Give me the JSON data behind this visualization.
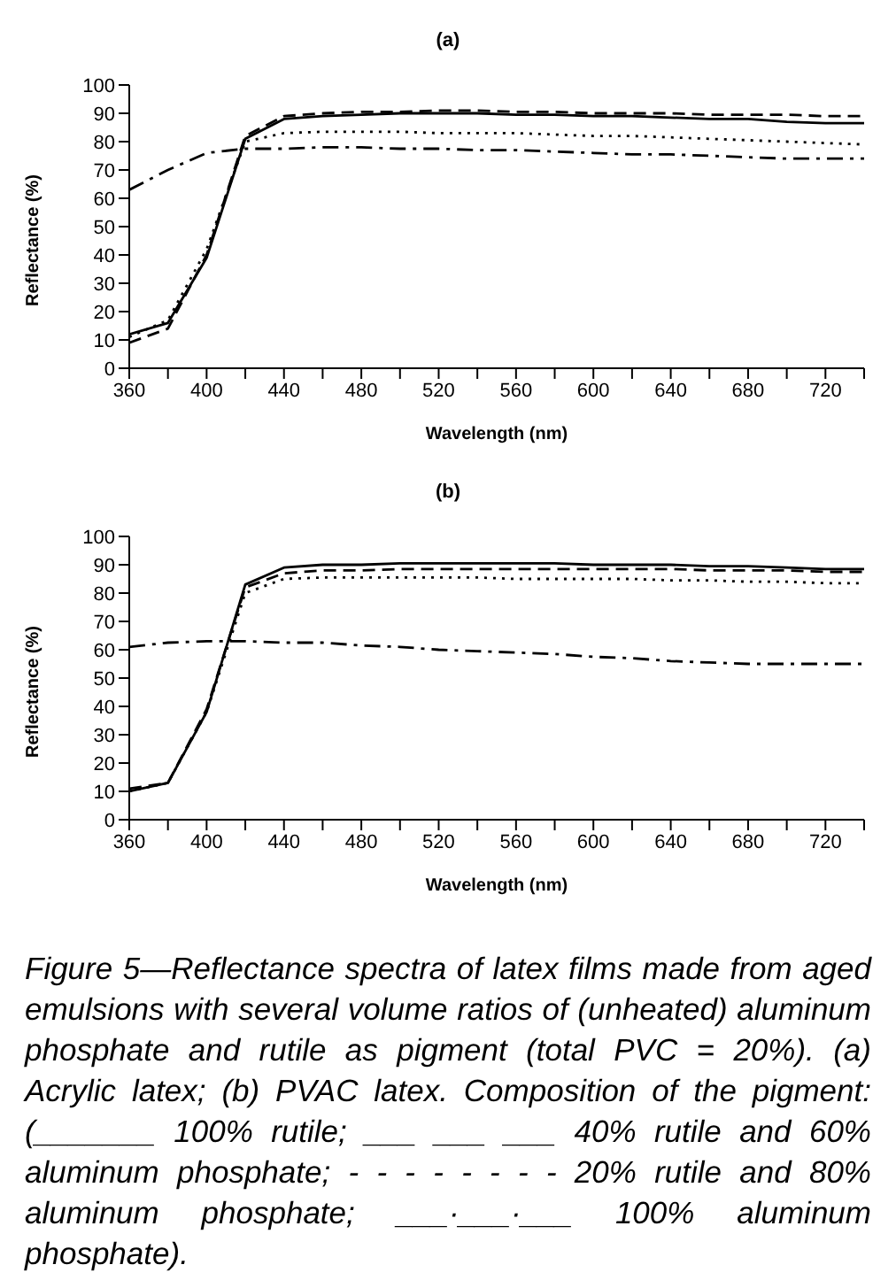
{
  "chart_data": [
    {
      "type": "line",
      "title": "(a)",
      "xlabel": "Wavelength (nm)",
      "ylabel": "Reflectance (%)",
      "x": [
        360,
        380,
        400,
        420,
        440,
        460,
        480,
        500,
        520,
        540,
        560,
        580,
        600,
        620,
        640,
        660,
        680,
        700,
        720,
        740
      ],
      "xlim": [
        360,
        740
      ],
      "xticks": [
        360,
        {
          "value": 380,
          "label": null
        },
        400,
        {
          "value": 420,
          "label": null
        },
        440,
        {
          "value": 460,
          "label": null
        },
        480,
        {
          "value": 500,
          "label": null
        },
        520,
        {
          "value": 540,
          "label": null
        },
        560,
        {
          "value": 580,
          "label": null
        },
        600,
        {
          "value": 620,
          "label": null
        },
        640,
        {
          "value": 660,
          "label": null
        },
        680,
        {
          "value": 700,
          "label": null
        },
        720,
        {
          "value": 740,
          "label": null
        }
      ],
      "ylim": [
        0,
        100
      ],
      "yticks": [
        0,
        10,
        20,
        30,
        40,
        50,
        60,
        70,
        80,
        90,
        100
      ],
      "grid": false,
      "marker": "none",
      "series": [
        {
          "color": "#000000",
          "line_style": "solid",
          "values": [
            12,
            16,
            39,
            81,
            88,
            89,
            89.5,
            90,
            90,
            90,
            89.5,
            89.5,
            89,
            89,
            88.5,
            88,
            88,
            87,
            86.5,
            86.5
          ]
        },
        {
          "color": "#000000",
          "line_style": "dashed",
          "values": [
            9,
            14,
            40,
            82,
            89,
            90,
            90.5,
            90.5,
            91,
            91,
            90.5,
            90.5,
            90,
            90,
            90,
            89.5,
            89.5,
            89.5,
            89,
            89
          ]
        },
        {
          "color": "#000000",
          "line_style": "dotted",
          "values": [
            11,
            17,
            42,
            80,
            83,
            83.5,
            83.5,
            83.5,
            83,
            83,
            83,
            82.5,
            82,
            82,
            81.5,
            81,
            80.5,
            80,
            79.5,
            79
          ]
        },
        {
          "color": "#000000",
          "line_style": "dashdot",
          "values": [
            63,
            70,
            76,
            77.5,
            77.5,
            78,
            78,
            77.5,
            77.5,
            77,
            77,
            76.5,
            76,
            75.5,
            75.5,
            75,
            74.5,
            74,
            74,
            74
          ]
        }
      ]
    },
    {
      "type": "line",
      "title": "(b)",
      "xlabel": "Wavelength (nm)",
      "ylabel": "Reflectance (%)",
      "x": [
        360,
        380,
        400,
        420,
        440,
        460,
        480,
        500,
        520,
        540,
        560,
        580,
        600,
        620,
        640,
        660,
        680,
        700,
        720,
        740
      ],
      "xlim": [
        360,
        740
      ],
      "xticks": [
        360,
        {
          "value": 380,
          "label": null
        },
        400,
        {
          "value": 420,
          "label": null
        },
        440,
        {
          "value": 460,
          "label": null
        },
        480,
        {
          "value": 500,
          "label": null
        },
        520,
        {
          "value": 540,
          "label": null
        },
        560,
        {
          "value": 580,
          "label": null
        },
        600,
        {
          "value": 620,
          "label": null
        },
        640,
        {
          "value": 660,
          "label": null
        },
        680,
        {
          "value": 700,
          "label": null
        },
        720,
        {
          "value": 740,
          "label": null
        }
      ],
      "ylim": [
        0,
        100
      ],
      "yticks": [
        0,
        10,
        20,
        30,
        40,
        50,
        60,
        70,
        80,
        90,
        100
      ],
      "grid": false,
      "marker": "none",
      "series": [
        {
          "color": "#000000",
          "line_style": "solid",
          "values": [
            10,
            13,
            38,
            83,
            89,
            90,
            90,
            90.5,
            90.5,
            90.5,
            90.5,
            90.5,
            90,
            90,
            90,
            89.5,
            89.5,
            89,
            88.5,
            88.5
          ]
        },
        {
          "color": "#000000",
          "line_style": "dashed",
          "values": [
            11,
            13,
            39,
            82,
            87,
            88,
            88,
            88.5,
            88.5,
            88.5,
            88.5,
            88.5,
            88.5,
            88.5,
            88.5,
            88,
            88,
            88,
            87.5,
            87.5
          ]
        },
        {
          "color": "#000000",
          "line_style": "dotted",
          "values": [
            10,
            13,
            38,
            80,
            85,
            85.5,
            85.5,
            85.5,
            85.5,
            85.5,
            85,
            85,
            85,
            85,
            84.5,
            84.5,
            84,
            84,
            83.5,
            83.5
          ]
        },
        {
          "color": "#000000",
          "line_style": "dashdot",
          "values": [
            61,
            62.5,
            63,
            63,
            62.5,
            62.5,
            61.5,
            61,
            60,
            59.5,
            59,
            58.5,
            57.5,
            57,
            56,
            55.5,
            55,
            55,
            55,
            55
          ]
        }
      ],
      "annotations": [
        "Figure 5—Reflectance spectra of latex films made from aged emulsions with several volume ratios of (unheated) aluminum phosphate and rutile as pigment (total PVC = 20%). (a) Acrylic latex; (b) PVAC latex. Composition of the pigment: (_______ 100% rutile; ___ ___ ___ 40% rutile and 60% aluminum phosphate; - - - - - - - - 20% rutile and 80% aluminum phosphate; ___·___·___ 100% aluminum phosphate)."
      ]
    }
  ]
}
